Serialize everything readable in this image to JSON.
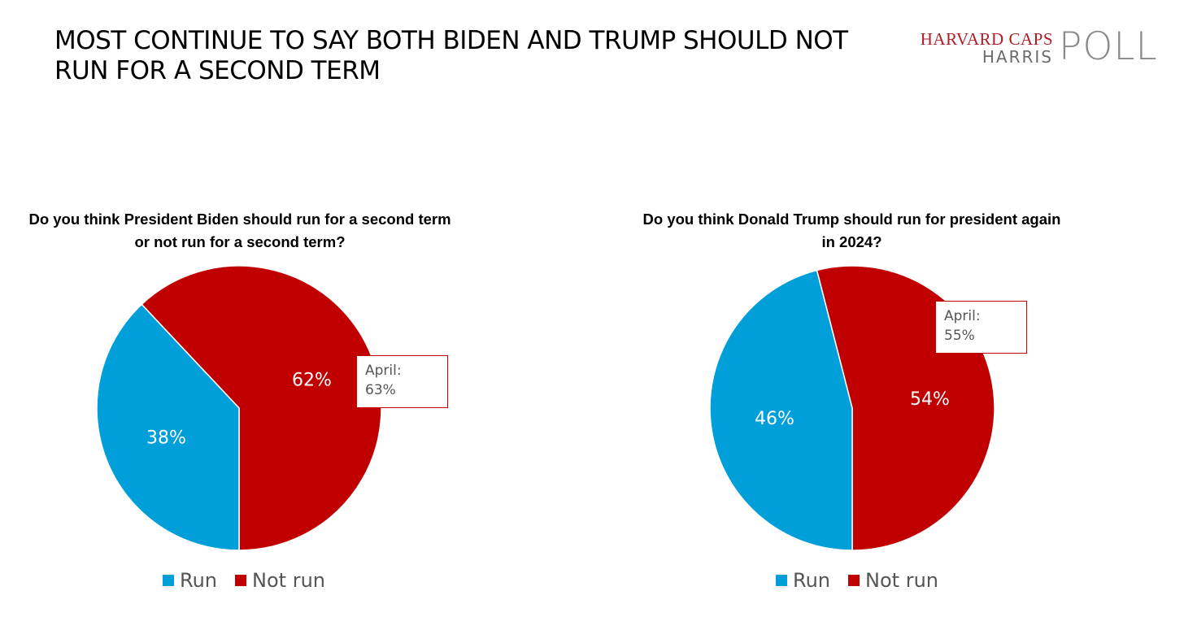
{
  "page": {
    "title": "MOST CONTINUE TO SAY BOTH BIDEN AND TRUMP SHOULD NOT RUN FOR A SECOND TERM",
    "logo": {
      "line1": "HARVARD CAPS",
      "line2": "HARRIS",
      "poll": "POLL"
    }
  },
  "colors": {
    "run": "#009fda",
    "not_run": "#c00000"
  },
  "chart_data": [
    {
      "type": "pie",
      "title": "Do you think President Biden should run for a second term or not run for a second term?",
      "categories": [
        "Run",
        "Not run"
      ],
      "values": [
        38,
        62
      ],
      "data_labels": [
        "38%",
        "62%"
      ],
      "annotation": {
        "line1": "April:",
        "line2": "63%"
      },
      "legend": {
        "items": [
          "Run",
          "Not run"
        ],
        "placement": "bottom"
      }
    },
    {
      "type": "pie",
      "title": "Do you think Donald Trump should run for president again in 2024?",
      "categories": [
        "Run",
        "Not run"
      ],
      "values": [
        46,
        54
      ],
      "data_labels": [
        "46%",
        "54%"
      ],
      "annotation": {
        "line1": "April:",
        "line2": "55%"
      },
      "legend": {
        "items": [
          "Run",
          "Not run"
        ],
        "placement": "bottom"
      }
    }
  ]
}
